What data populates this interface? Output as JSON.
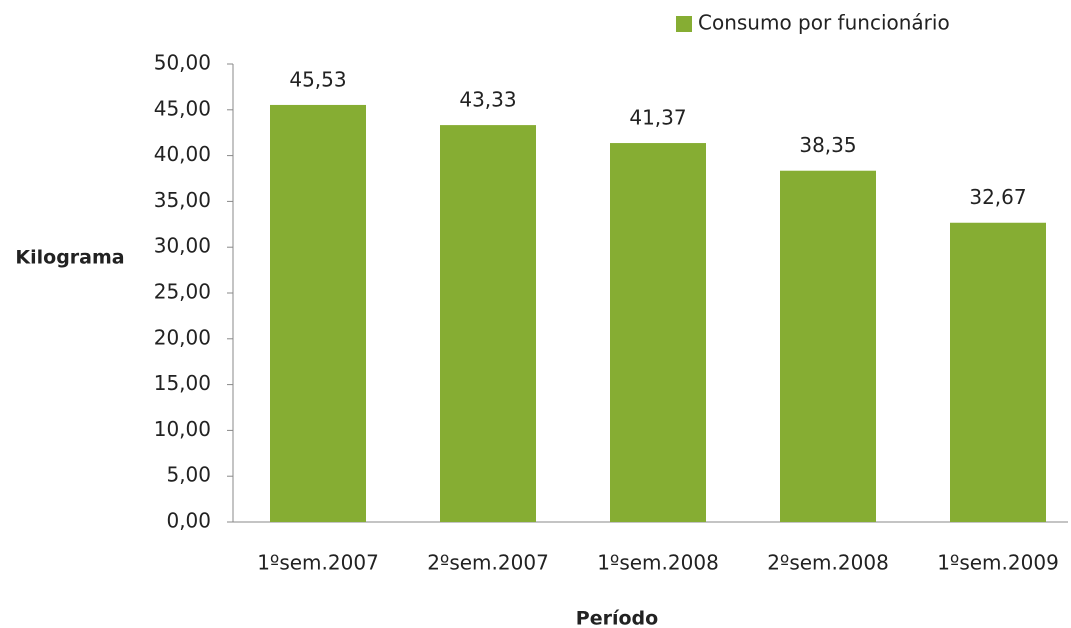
{
  "chart_data": {
    "type": "bar",
    "categories": [
      "1ºsem.2007",
      "2ºsem.2007",
      "1ºsem.2008",
      "2ºsem.2008",
      "1ºsem.2009"
    ],
    "series": [
      {
        "name": "Consumo por funcionário",
        "color": "#86ad33",
        "values": [
          45.53,
          43.33,
          41.37,
          38.35,
          32.67
        ],
        "value_labels": [
          "45,53",
          "43,33",
          "41,37",
          "38,35",
          "32,67"
        ]
      }
    ],
    "ylabel": "Kilograma",
    "xlabel": "Período",
    "ylim": [
      0,
      50
    ],
    "yticks": [
      {
        "value": 0,
        "label": "0,00"
      },
      {
        "value": 5,
        "label": "5,00"
      },
      {
        "value": 10,
        "label": "10,00"
      },
      {
        "value": 15,
        "label": "15,00"
      },
      {
        "value": 20,
        "label": "20,00"
      },
      {
        "value": 25,
        "label": "25,00"
      },
      {
        "value": 30,
        "label": "30,00"
      },
      {
        "value": 35,
        "label": "35,00"
      },
      {
        "value": 40,
        "label": "40,00"
      },
      {
        "value": 45,
        "label": "45,00"
      },
      {
        "value": 50,
        "label": "50,00"
      }
    ],
    "legend": "top-right"
  }
}
